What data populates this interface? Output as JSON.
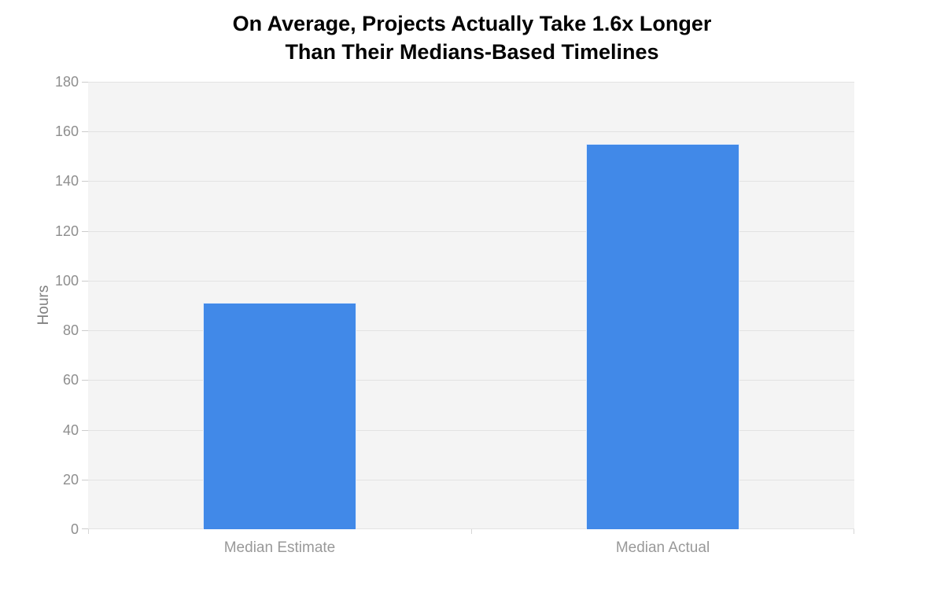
{
  "chart_data": {
    "type": "bar",
    "title": "On Average, Projects Actually Take 1.6x Longer Than Their Medians-Based Timelines",
    "title_lines": [
      "On Average, Projects Actually Take 1.6x Longer",
      "Than Their Medians-Based Timelines"
    ],
    "categories": [
      "Median Estimate",
      "Median Actual"
    ],
    "series": [
      {
        "name": "Hours",
        "values": [
          91,
          155
        ]
      }
    ],
    "values": [
      91,
      155
    ],
    "xlabel": "",
    "ylabel": "Hours",
    "ylim": [
      0,
      180
    ],
    "ytick_step": 20,
    "yticks": [
      0,
      20,
      40,
      60,
      80,
      100,
      120,
      140,
      160,
      180
    ],
    "grid": true,
    "legend": "none",
    "colors": {
      "bar": "#4189e8",
      "bar_border": "#ffffff",
      "plot_background": "#f4f4f4",
      "gridline": "#e2e2e2",
      "tick": "#cccccc",
      "y_label_text": "#8e8e8e",
      "x_label_text": "#999999",
      "axis_title_text": "#808080",
      "title_text": "#000000",
      "page_background": "#ffffff"
    }
  }
}
